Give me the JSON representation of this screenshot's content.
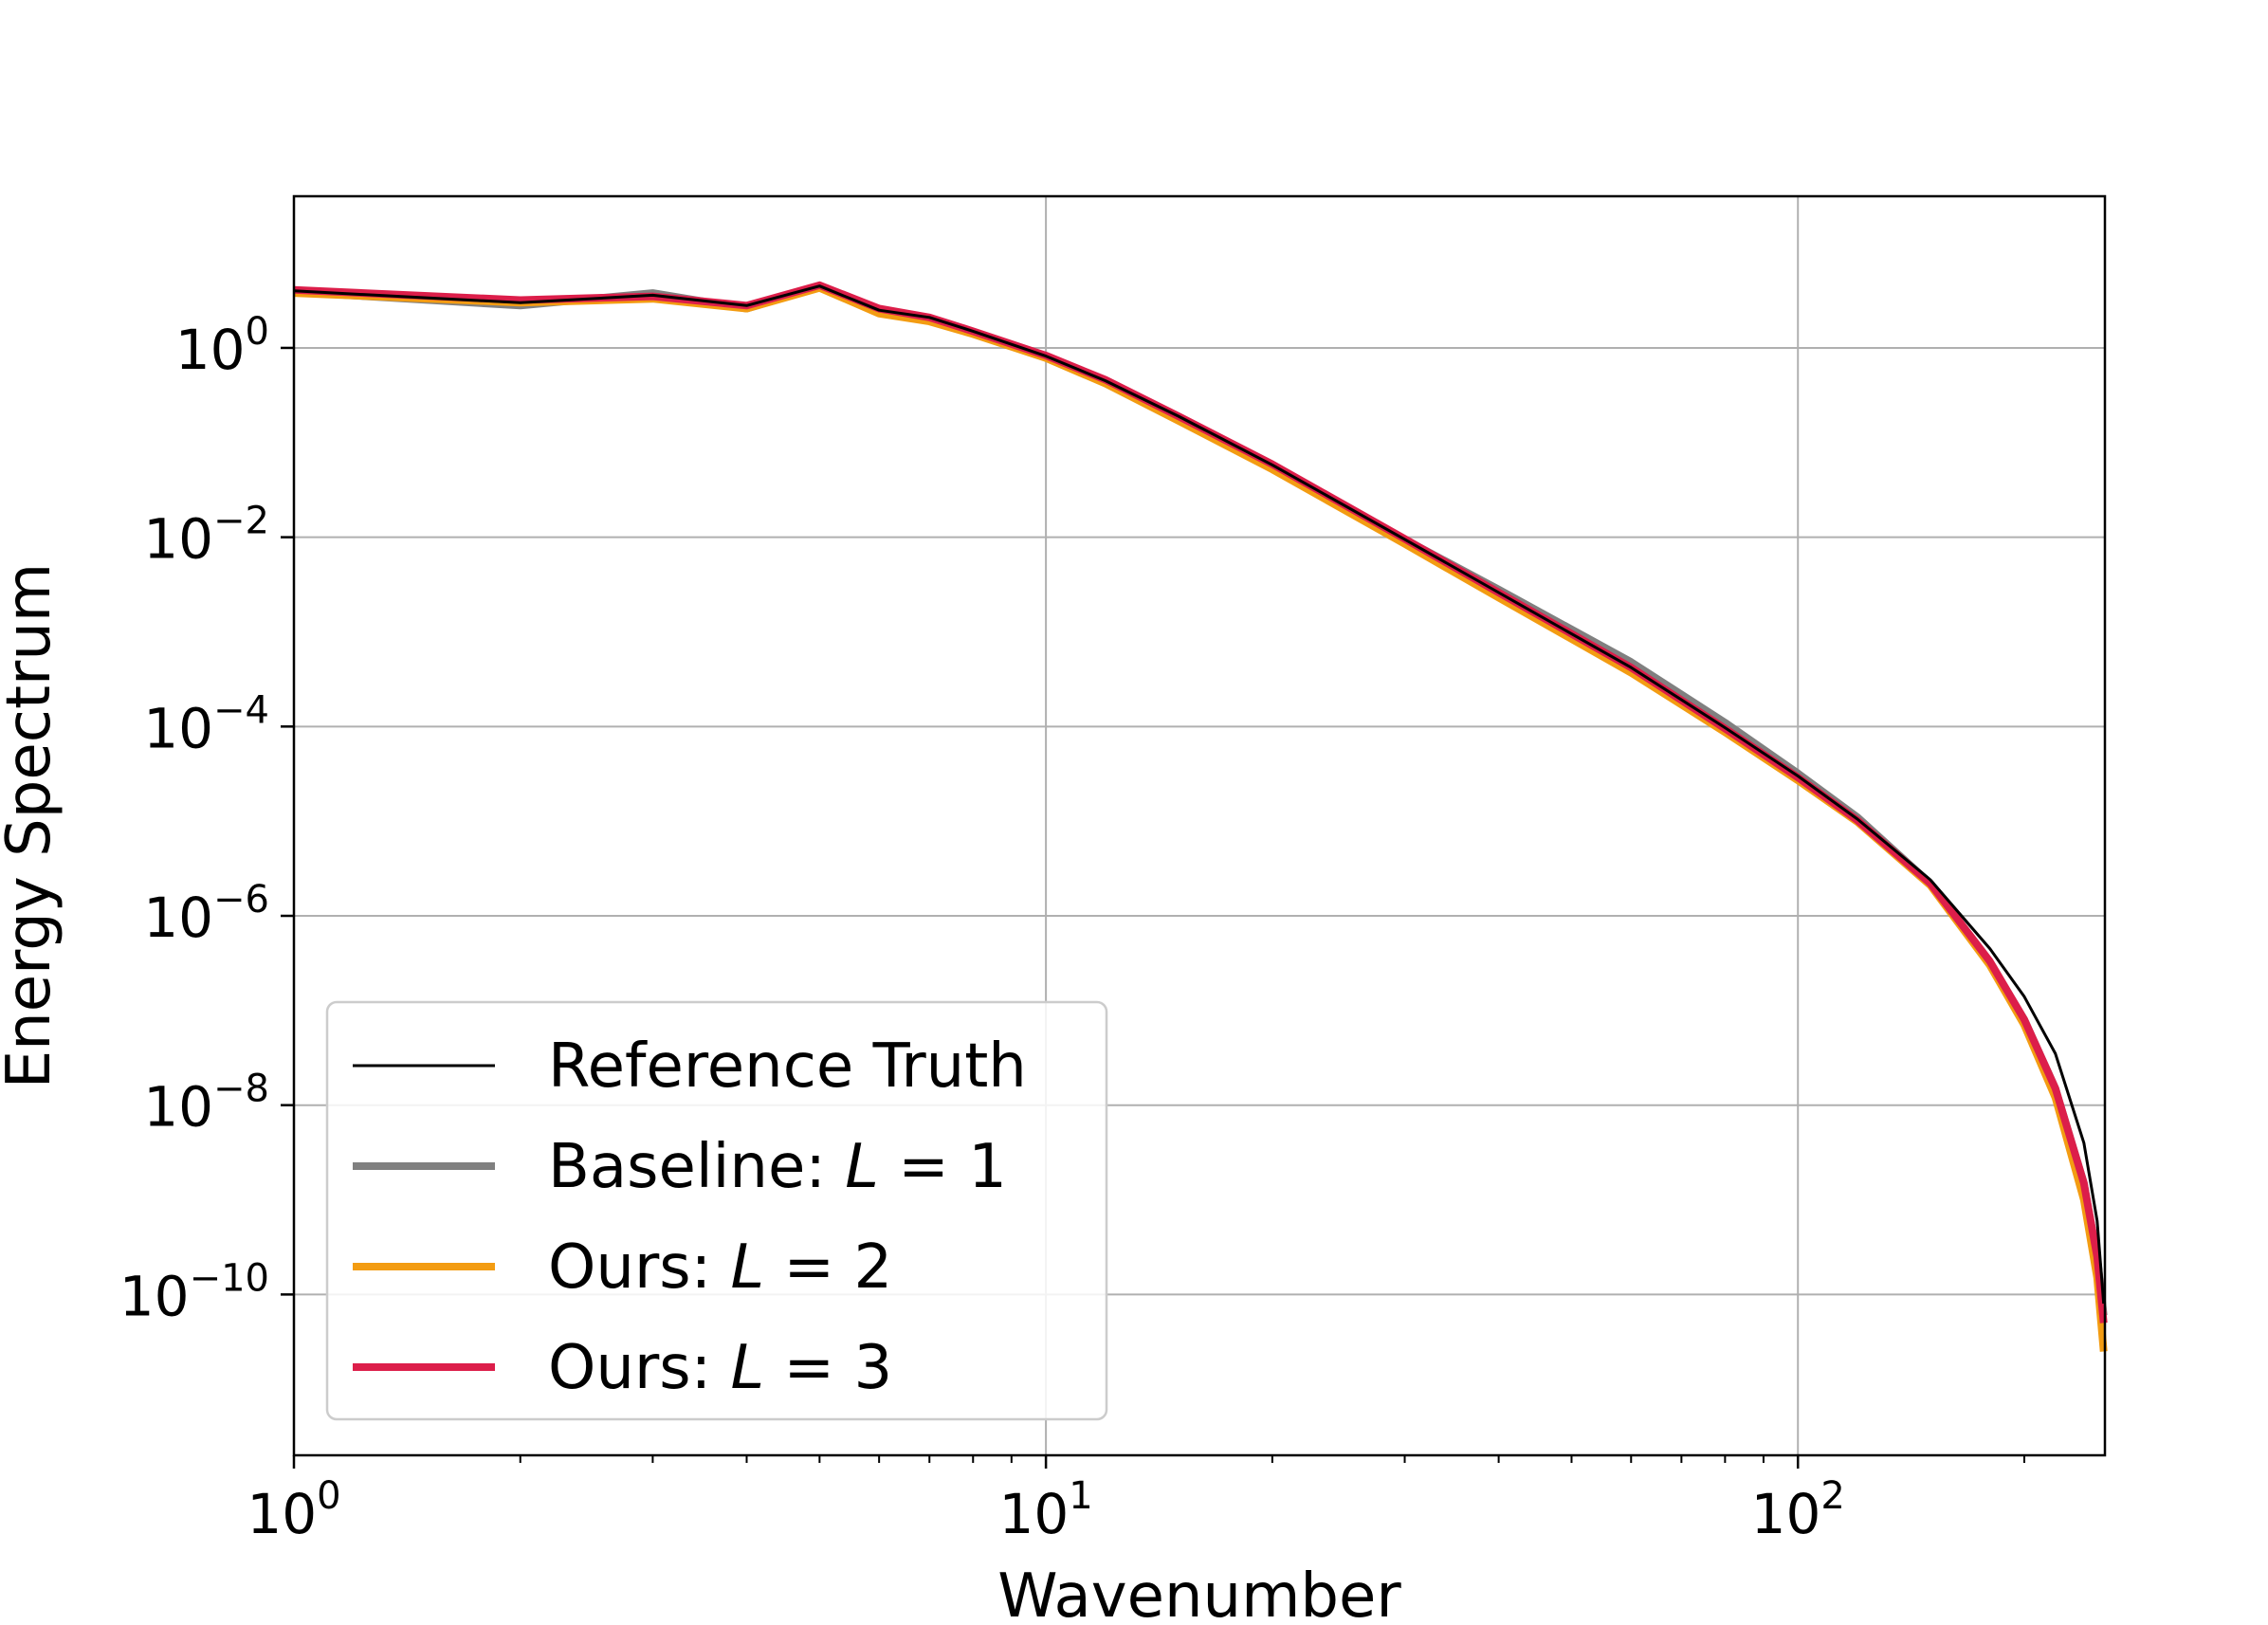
{
  "chart_data": {
    "type": "line",
    "xlabel": "Wavenumber",
    "ylabel": "Energy Spectrum",
    "xscale": "log",
    "yscale": "log",
    "xlim": [
      1,
      256
    ],
    "ylim": [
      2e-12,
      40
    ],
    "grid": true,
    "legend_position": "lower-left",
    "x_ticks": [
      {
        "base": "10",
        "exp": "0",
        "value": 1
      },
      {
        "base": "10",
        "exp": "1",
        "value": 10
      },
      {
        "base": "10",
        "exp": "2",
        "value": 100
      }
    ],
    "y_ticks": [
      {
        "base": "10",
        "exp": "0",
        "value": 1
      },
      {
        "base": "10",
        "exp": "−2",
        "value": 0.01
      },
      {
        "base": "10",
        "exp": "−4",
        "value": 0.0001
      },
      {
        "base": "10",
        "exp": "−6",
        "value": 1e-06
      },
      {
        "base": "10",
        "exp": "−8",
        "value": 1e-08
      },
      {
        "base": "10",
        "exp": "−10",
        "value": 1e-10
      }
    ],
    "series": [
      {
        "name": "Reference Truth",
        "legend_prefix": "Reference Truth",
        "legend_var": "",
        "legend_value": "",
        "color": "#000000",
        "x": [
          1,
          2,
          3,
          4,
          5,
          6,
          7,
          8,
          10,
          12,
          15,
          20,
          30,
          40,
          60,
          80,
          100,
          120,
          150,
          180,
          200,
          220,
          240,
          250,
          255
        ],
        "y": [
          4.0,
          3.0,
          3.6,
          2.8,
          4.5,
          2.5,
          2.1,
          1.5,
          0.82,
          0.45,
          0.19,
          0.058,
          0.0095,
          0.0026,
          0.00042,
          9.7e-05,
          3e-05,
          1.05e-05,
          2.4e-06,
          4.5e-07,
          1.4e-07,
          3.5e-08,
          4e-09,
          6e-10,
          8e-11
        ]
      },
      {
        "name": "Baseline: L = 1",
        "legend_prefix": "Baseline: ",
        "legend_var": "L",
        "legend_value": " = 1",
        "color": "#808080",
        "x": [
          1,
          2,
          3,
          4,
          5,
          6,
          7,
          8,
          10,
          12,
          15,
          20,
          30,
          40,
          60,
          80,
          100,
          120,
          150,
          180,
          200,
          220,
          240,
          250,
          255
        ],
        "y": [
          3.9,
          2.8,
          3.8,
          2.6,
          4.4,
          2.4,
          2.0,
          1.45,
          0.8,
          0.44,
          0.18,
          0.055,
          0.0095,
          0.0028,
          0.00048,
          0.00011,
          3.2e-05,
          1.1e-05,
          2.2e-06,
          3.2e-07,
          8e-08,
          1.5e-08,
          1.5e-09,
          2.5e-10,
          6e-11
        ]
      },
      {
        "name": "Ours: L = 2",
        "legend_prefix": "Ours: ",
        "legend_var": "L",
        "legend_value": " = 2",
        "color": "#f39c12",
        "x": [
          1,
          2,
          3,
          4,
          5,
          6,
          7,
          8,
          10,
          12,
          15,
          20,
          30,
          40,
          60,
          80,
          100,
          120,
          150,
          180,
          200,
          220,
          240,
          250,
          255
        ],
        "y": [
          3.8,
          3.0,
          3.3,
          2.6,
          4.3,
          2.3,
          1.9,
          1.4,
          0.78,
          0.42,
          0.17,
          0.052,
          0.0085,
          0.0023,
          0.00037,
          8.7e-05,
          2.7e-05,
          9.8e-06,
          2.1e-06,
          3e-07,
          7e-08,
          1.2e-08,
          1e-09,
          1.5e-10,
          2.5e-11
        ]
      },
      {
        "name": "Ours: L = 3",
        "legend_prefix": "Ours: ",
        "legend_var": "L",
        "legend_value": " = 3",
        "color": "#dc1e4a",
        "x": [
          1,
          2,
          3,
          4,
          5,
          6,
          7,
          8,
          10,
          12,
          15,
          20,
          30,
          40,
          60,
          80,
          100,
          120,
          150,
          180,
          200,
          220,
          240,
          250,
          255
        ],
        "y": [
          4.1,
          3.2,
          3.5,
          2.8,
          4.6,
          2.6,
          2.1,
          1.5,
          0.83,
          0.46,
          0.19,
          0.059,
          0.0096,
          0.0026,
          0.00042,
          9.5e-05,
          2.9e-05,
          1.02e-05,
          2.2e-06,
          3.3e-07,
          8e-08,
          1.5e-08,
          1.5e-09,
          2.5e-10,
          5e-11
        ]
      }
    ]
  }
}
